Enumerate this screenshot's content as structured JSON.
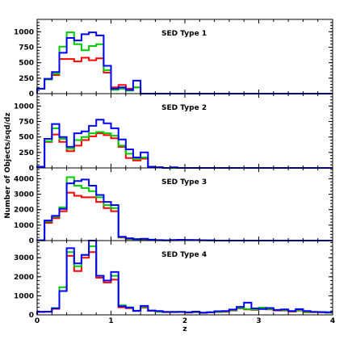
{
  "chart_data": {
    "type": "histogram",
    "xlabel": "z",
    "ylabel": "Number of Objects/sqd/dz",
    "xlim": [
      0,
      4
    ],
    "x_ticks": [
      "0",
      "1",
      "2",
      "3",
      "4"
    ],
    "bin_width": 0.1,
    "bin_edges_start": 0,
    "series_colors": {
      "red": "#ff0000",
      "green": "#00cc00",
      "blue": "#0000ff"
    },
    "panels": [
      {
        "title": "SED Type 1",
        "ylim": [
          0,
          1200
        ],
        "y_ticks": [
          0,
          250,
          500,
          750,
          1000
        ],
        "series": [
          {
            "color": "red",
            "values": [
              80,
              230,
              300,
              560,
              560,
              520,
              580,
              540,
              570,
              340,
              100,
              140,
              80,
              100,
              0,
              0,
              0,
              0,
              0,
              0,
              0,
              0,
              0,
              0,
              0,
              0,
              0,
              0,
              0,
              0,
              0,
              0,
              0,
              0,
              0,
              0,
              0,
              0,
              0,
              0
            ]
          },
          {
            "color": "green",
            "values": [
              80,
              230,
              320,
              760,
              990,
              800,
              700,
              770,
              800,
              380,
              60,
              80,
              50,
              100,
              0,
              0,
              0,
              0,
              0,
              0,
              0,
              0,
              0,
              0,
              0,
              0,
              0,
              0,
              0,
              0,
              0,
              0,
              0,
              0,
              0,
              0,
              0,
              0,
              0,
              0
            ]
          },
          {
            "color": "blue",
            "values": [
              80,
              240,
              350,
              660,
              900,
              860,
              960,
              990,
              940,
              450,
              80,
              100,
              60,
              210,
              0,
              0,
              0,
              0,
              0,
              0,
              0,
              0,
              0,
              0,
              0,
              0,
              0,
              0,
              0,
              0,
              0,
              0,
              0,
              0,
              0,
              0,
              0,
              0,
              0,
              0
            ]
          }
        ]
      },
      {
        "title": "SED Type 2",
        "ylim": [
          0,
          1200
        ],
        "y_ticks": [
          0,
          250,
          500,
          750,
          1000
        ],
        "series": [
          {
            "color": "red",
            "values": [
              20,
              420,
              540,
              420,
              270,
              360,
              450,
              510,
              560,
              530,
              480,
              340,
              160,
              120,
              150,
              20,
              10,
              0,
              0,
              0,
              0,
              0,
              0,
              0,
              0,
              0,
              0,
              0,
              0,
              0,
              0,
              0,
              0,
              0,
              0,
              0,
              0,
              0,
              0,
              0
            ]
          },
          {
            "color": "green",
            "values": [
              20,
              430,
              640,
              470,
              310,
              450,
              500,
              560,
              580,
              560,
              520,
              360,
              230,
              150,
              170,
              20,
              10,
              0,
              0,
              0,
              0,
              0,
              0,
              0,
              0,
              0,
              0,
              0,
              0,
              0,
              0,
              0,
              0,
              0,
              0,
              0,
              0,
              0,
              0,
              0
            ]
          },
          {
            "color": "blue",
            "values": [
              20,
              470,
              710,
              500,
              340,
              560,
              590,
              680,
              780,
              720,
              640,
              460,
              300,
              170,
              250,
              20,
              10,
              0,
              10,
              0,
              0,
              0,
              0,
              0,
              0,
              0,
              0,
              0,
              0,
              0,
              0,
              0,
              0,
              0,
              0,
              0,
              0,
              0,
              0,
              0
            ]
          }
        ]
      },
      {
        "title": "SED Type 3",
        "ylim": [
          0,
          4700
        ],
        "y_ticks": [
          0,
          1000,
          2000,
          3000,
          4000
        ],
        "series": [
          {
            "color": "red",
            "values": [
              20,
              1150,
              1450,
              1900,
              3100,
              2900,
              2800,
              2800,
              2500,
              2100,
              1900,
              200,
              100,
              60,
              80,
              50,
              20,
              10,
              20,
              40,
              30,
              30,
              20,
              10,
              0,
              0,
              0,
              0,
              0,
              0,
              0,
              0,
              0,
              0,
              0,
              0,
              0,
              0,
              0,
              0
            ]
          },
          {
            "color": "green",
            "values": [
              20,
              1250,
              1550,
              2150,
              4100,
              3550,
              3400,
              3200,
              2800,
              2300,
              2100,
              220,
              120,
              80,
              100,
              60,
              20,
              10,
              30,
              50,
              40,
              30,
              20,
              10,
              0,
              0,
              0,
              0,
              0,
              0,
              0,
              0,
              0,
              0,
              0,
              0,
              0,
              0,
              0,
              0
            ]
          },
          {
            "color": "blue",
            "values": [
              20,
              1300,
              1600,
              2050,
              3700,
              3850,
              3950,
              3550,
              2950,
              2500,
              2300,
              250,
              150,
              100,
              120,
              60,
              30,
              20,
              40,
              50,
              40,
              30,
              20,
              10,
              0,
              0,
              0,
              0,
              0,
              0,
              0,
              0,
              0,
              0,
              0,
              0,
              0,
              0,
              0,
              0
            ]
          }
        ]
      },
      {
        "title": "SED Type 4",
        "ylim": [
          0,
          3900
        ],
        "y_ticks": [
          0,
          1000,
          2000,
          3000
        ],
        "series": [
          {
            "color": "red",
            "values": [
              150,
              160,
              320,
              1250,
              3100,
              2300,
              3000,
              3300,
              1950,
              1700,
              1850,
              400,
              350,
              200,
              380,
              210,
              160,
              140,
              140,
              150,
              120,
              140,
              100,
              130,
              150,
              160,
              230,
              340,
              290,
              260,
              360,
              290,
              230,
              230,
              170,
              230,
              140,
              140,
              130,
              110
            ]
          },
          {
            "color": "green",
            "values": [
              170,
              170,
              360,
              1450,
              3300,
              2550,
              3150,
              3600,
              2050,
              1800,
              2050,
              500,
              400,
              220,
              420,
              230,
              170,
              150,
              150,
              160,
              130,
              150,
              110,
              140,
              160,
              180,
              250,
              360,
              310,
              280,
              380,
              310,
              250,
              250,
              190,
              250,
              160,
              150,
              140,
              120
            ]
          },
          {
            "color": "blue",
            "values": [
              160,
              170,
              340,
              1250,
              3500,
              2700,
              3150,
              3900,
              2050,
              1800,
              2250,
              450,
              380,
              210,
              470,
              230,
              200,
              160,
              160,
              160,
              140,
              170,
              120,
              140,
              190,
              200,
              280,
              420,
              640,
              340,
              310,
              360,
              260,
              290,
              200,
              300,
              200,
              160,
              150,
              140
            ]
          }
        ]
      }
    ]
  }
}
